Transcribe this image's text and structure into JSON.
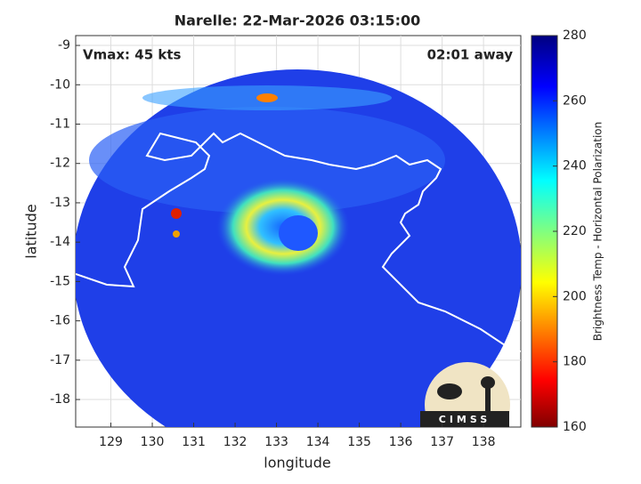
{
  "chart_data": {
    "type": "map",
    "title": "Narelle: 22-Mar-2026 03:15:00",
    "annotations": [
      "Vmax: 45 kts",
      "02:01 away"
    ],
    "xlabel": "longitude",
    "ylabel": "latitude",
    "xlim": [
      128.15,
      138.9
    ],
    "xticks": [
      129,
      130,
      131,
      132,
      133,
      134,
      135,
      136,
      137,
      138
    ],
    "ylim": [
      -18.7,
      -8.75
    ],
    "yticks": [
      -18,
      -17,
      -16,
      -15,
      -14,
      -13,
      -12,
      -11,
      -10,
      -9
    ],
    "grid": true,
    "colorbar": {
      "label": "Brightness Temp - Horizontal Polarization",
      "lim": [
        160,
        280
      ],
      "ticks": [
        160,
        180,
        200,
        220,
        240,
        260,
        280
      ]
    },
    "logo": "CIMSS"
  }
}
